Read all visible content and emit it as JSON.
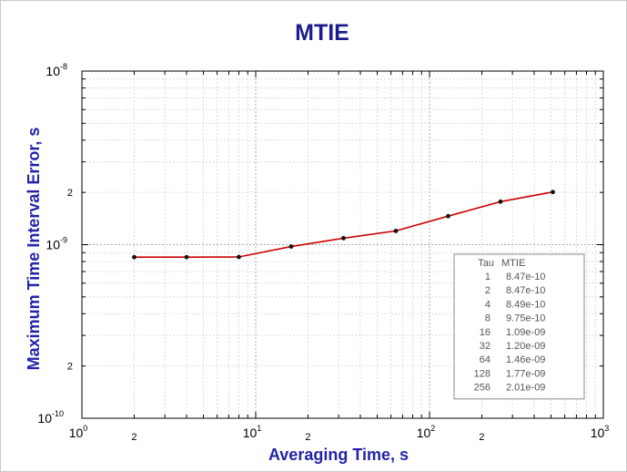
{
  "chart_data": {
    "type": "line",
    "title": "MTIE",
    "xlabel": "Averaging Time, s",
    "ylabel": "Maximum Time Interval Error, s",
    "xscale": "log",
    "yscale": "log",
    "xlim": [
      1,
      1000
    ],
    "ylim": [
      1e-10,
      1e-08
    ],
    "grid": true,
    "x_major_ticks": [
      {
        "value": 1,
        "base": "10",
        "exp": "0"
      },
      {
        "value": 10,
        "base": "10",
        "exp": "1"
      },
      {
        "value": 100,
        "base": "10",
        "exp": "2"
      },
      {
        "value": 1000,
        "base": "10",
        "exp": "3"
      }
    ],
    "x_minor_labels": [
      {
        "value": 2,
        "label": "2"
      },
      {
        "value": 20,
        "label": "2"
      },
      {
        "value": 200,
        "label": "2"
      }
    ],
    "y_major_ticks": [
      {
        "value": 1e-10,
        "base": "10",
        "exp": "-10"
      },
      {
        "value": 1e-09,
        "base": "10",
        "exp": "-9"
      },
      {
        "value": 1e-08,
        "base": "10",
        "exp": "-8"
      }
    ],
    "y_minor_labels": [
      {
        "value": 2e-10,
        "label": "2"
      },
      {
        "value": 2e-09,
        "label": "2"
      }
    ],
    "series": [
      {
        "color": "#cc0000",
        "x": [
          1,
          2,
          4,
          8,
          16,
          32,
          64,
          128,
          256
        ],
        "y": [
          8.47e-10,
          8.47e-10,
          8.49e-10,
          9.75e-10,
          1.09e-09,
          1.2e-09,
          1.46e-09,
          1.77e-09,
          2.01e-09
        ]
      }
    ],
    "data_x_scale": 0.5,
    "legend": {
      "placement": "bottom-right",
      "headers": [
        "Tau",
        "MTIE"
      ],
      "rows": [
        {
          "tau": "1",
          "mtie": "8.47e-10"
        },
        {
          "tau": "2",
          "mtie": "8.47e-10"
        },
        {
          "tau": "4",
          "mtie": "8.49e-10"
        },
        {
          "tau": "8",
          "mtie": "9.75e-10"
        },
        {
          "tau": "16",
          "mtie": "1.09e-09"
        },
        {
          "tau": "32",
          "mtie": "1.20e-09"
        },
        {
          "tau": "64",
          "mtie": "1.46e-09"
        },
        {
          "tau": "128",
          "mtie": "1.77e-09"
        },
        {
          "tau": "256",
          "mtie": "2.01e-09"
        }
      ]
    }
  }
}
